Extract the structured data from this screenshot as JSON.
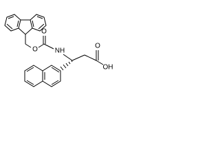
{
  "atoms": {
    "ester_oxygen": "O",
    "carbonyl_oxygen": "O",
    "amine": "NH",
    "acid_oxygen": "O",
    "hydroxyl": "OH"
  }
}
